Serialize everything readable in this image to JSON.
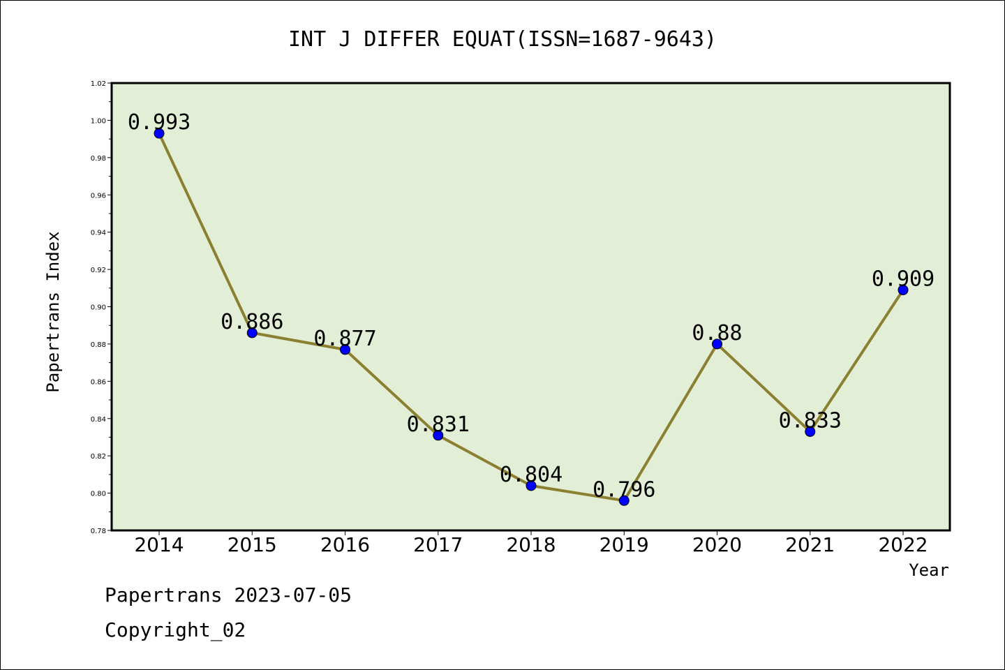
{
  "chart_data": {
    "type": "line",
    "title": "INT J DIFFER EQUAT(ISSN=1687-9643)",
    "xlabel": "Year",
    "ylabel": "Papertrans Index",
    "categories": [
      "2014",
      "2015",
      "2016",
      "2017",
      "2018",
      "2019",
      "2020",
      "2021",
      "2022"
    ],
    "values": [
      0.993,
      0.886,
      0.877,
      0.831,
      0.804,
      0.796,
      0.88,
      0.833,
      0.909
    ],
    "data_labels": [
      "0.993",
      "0.886",
      "0.877",
      "0.831",
      "0.804",
      "0.796",
      "0.88",
      "0.833",
      "0.909"
    ],
    "ylim": [
      0.78,
      1.02
    ],
    "yticks": [
      "0.78",
      "0.80",
      "0.82",
      "0.84",
      "0.86",
      "0.88",
      "0.90",
      "0.92",
      "0.94",
      "0.96",
      "0.98",
      "1.00",
      "1.02"
    ],
    "grid": false,
    "colors": {
      "plot_background": "#e2efd6",
      "line": "#8b8032",
      "marker": "#0000ff"
    }
  },
  "footer": {
    "line1": "Papertrans 2023-07-05",
    "line2": "Copyright_02"
  }
}
